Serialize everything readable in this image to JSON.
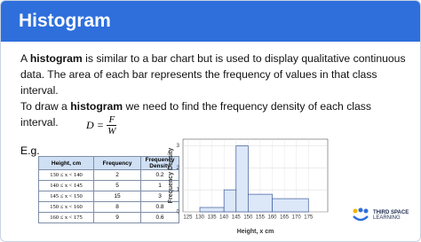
{
  "header": {
    "title": "Histogram"
  },
  "paragraphs": [
    {
      "before": "A ",
      "bold": "histogram",
      "after": " is similar to a bar chart but is used to display qualitative continuous data. The area of each bar represents the frequency of values in that class interval."
    },
    {
      "before": "To draw a ",
      "bold": "histogram",
      "after": " we need to find the frequency density of each class interval."
    }
  ],
  "formula": {
    "lhs": "D",
    "equals": "=",
    "numerator": "F",
    "denominator": "W"
  },
  "example_label": "E.g.",
  "table": {
    "headers": [
      "Height, cm",
      "Frequency",
      "Frequency Density"
    ],
    "rows": [
      [
        "130 ≤ x < 140",
        2,
        0.2
      ],
      [
        "140 ≤ x < 145",
        5,
        1
      ],
      [
        "145 ≤ x < 150",
        15,
        3
      ],
      [
        "150 ≤ x < 160",
        8,
        0.8
      ],
      [
        "160 ≤ x < 175",
        9,
        0.6
      ]
    ]
  },
  "chart_data": {
    "type": "histogram",
    "xlabel": "Height, x cm",
    "ylabel": "Frequency Density",
    "bins": [
      130,
      140,
      145,
      150,
      160,
      175
    ],
    "values": [
      0.2,
      1,
      3,
      0.8,
      0.6
    ],
    "color": "#dce7f8",
    "edge_color": "#3b5b9a",
    "xlim": [
      123,
      183
    ],
    "xticks": [
      125,
      130,
      135,
      140,
      145,
      150,
      155,
      160,
      165,
      170,
      175
    ],
    "ylim": [
      0,
      3.3
    ],
    "yticks": [
      0,
      1,
      2,
      3
    ],
    "grid": true
  },
  "logo": [
    "THIRD SPACE",
    "LEARNING"
  ]
}
